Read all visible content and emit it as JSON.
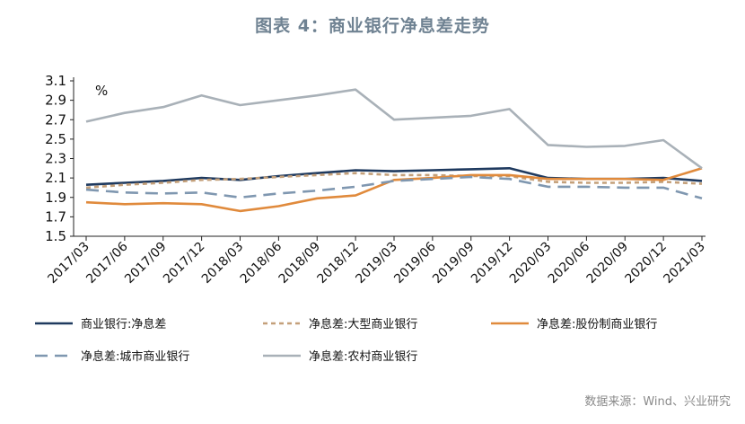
{
  "title": "图表 4：商业银行净息差走势",
  "source": "数据来源：Wind、兴业研究",
  "chart_data": {
    "type": "line",
    "unit_label": "%",
    "x": [
      "2017/03",
      "2017/06",
      "2017/09",
      "2017/12",
      "2018/03",
      "2018/06",
      "2018/09",
      "2018/12",
      "2019/03",
      "2019/06",
      "2019/09",
      "2019/12",
      "2020/03",
      "2020/06",
      "2020/09",
      "2020/12",
      "2021/03"
    ],
    "ylim": [
      1.5,
      3.1
    ],
    "yticks": [
      "3.1",
      "2.9",
      "2.7",
      "2.5",
      "2.3",
      "2.1",
      "1.9",
      "1.7",
      "1.5"
    ],
    "grid": false,
    "legend_position": "bottom",
    "series": [
      {
        "name": "商业银行:净息差",
        "color": "#1f3a5f",
        "dash": "solid",
        "values": [
          2.03,
          2.05,
          2.07,
          2.1,
          2.08,
          2.12,
          2.15,
          2.18,
          2.17,
          2.18,
          2.19,
          2.2,
          2.1,
          2.09,
          2.09,
          2.1,
          2.07
        ]
      },
      {
        "name": "净息差:大型商业银行",
        "color": "#c4a07a",
        "dash": "short",
        "values": [
          2.0,
          2.03,
          2.05,
          2.08,
          2.09,
          2.11,
          2.13,
          2.15,
          2.13,
          2.13,
          2.12,
          2.12,
          2.06,
          2.05,
          2.05,
          2.06,
          2.04
        ]
      },
      {
        "name": "净息差:股份制商业银行",
        "color": "#e08a3c",
        "dash": "solid",
        "values": [
          1.85,
          1.83,
          1.84,
          1.83,
          1.76,
          1.81,
          1.89,
          1.92,
          2.08,
          2.1,
          2.13,
          2.13,
          2.09,
          2.09,
          2.09,
          2.08,
          2.2
        ]
      },
      {
        "name": "净息差:城市商业银行",
        "color": "#7f97b0",
        "dash": "long",
        "values": [
          1.98,
          1.95,
          1.94,
          1.95,
          1.9,
          1.94,
          1.97,
          2.01,
          2.07,
          2.09,
          2.11,
          2.09,
          2.01,
          2.01,
          2.0,
          2.0,
          1.89
        ]
      },
      {
        "name": "净息差:农村商业银行",
        "color": "#a9b1b8",
        "dash": "solid",
        "values": [
          2.68,
          2.77,
          2.83,
          2.95,
          2.85,
          2.9,
          2.95,
          3.01,
          2.7,
          2.72,
          2.74,
          2.81,
          2.44,
          2.42,
          2.43,
          2.49,
          2.2
        ]
      }
    ]
  }
}
